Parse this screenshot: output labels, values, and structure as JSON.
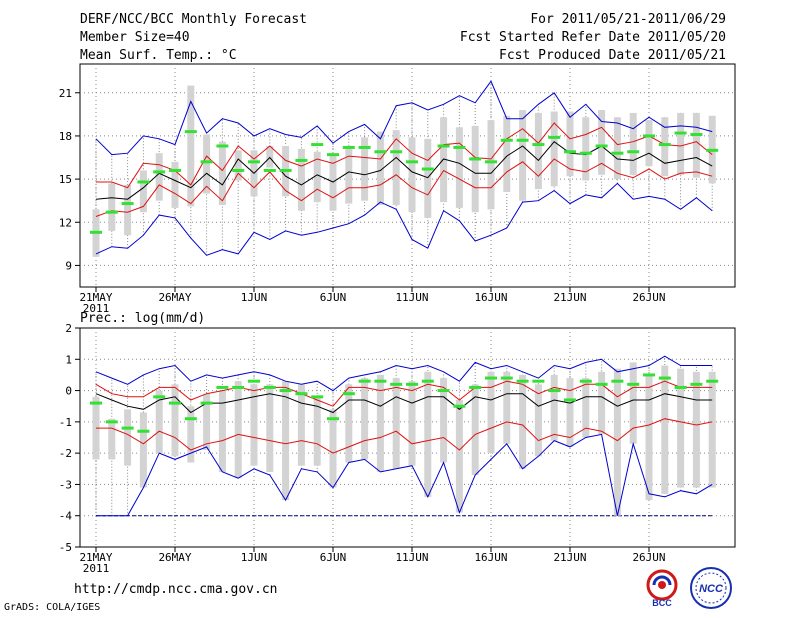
{
  "header": {
    "title": "DERF/NCC/BCC Monthly Forecast",
    "member_size": "Member Size=40",
    "variable": "Mean Surf. Temp.: °C",
    "forecast_period": "For 2011/05/21-2011/06/29",
    "start_date": "Fcst Started Refer Date 2011/05/20",
    "produced_date": "Fcst Produced Date 2011/05/21"
  },
  "footer": {
    "url": "http://cmdp.ncc.cma.gov.cn",
    "credit": "GrADS: COLA/IGES",
    "logo_left_text": "BCC",
    "logo_right_text": "NCC"
  },
  "colors": {
    "box": "#d3d3d3",
    "median": "#33e133",
    "mean": "#000000",
    "std": "#e01010",
    "range": "#0000d0",
    "whisker": "#888888"
  },
  "chart_data": [
    {
      "type": "box",
      "title": "Mean Surf. Temp.: °C",
      "ylim": [
        7.5,
        23
      ],
      "yticks": [
        9,
        12,
        15,
        18,
        21
      ],
      "xlabels": [
        "21MAY",
        "26MAY",
        "1JUN",
        "6JUN",
        "11JUN",
        "16JUN",
        "21JUN",
        "26JUN"
      ],
      "year": "2011",
      "days": 40,
      "mean": [
        13.6,
        13.7,
        13.6,
        14.4,
        15.4,
        14.9,
        14.4,
        15.4,
        14.6,
        16.4,
        15.4,
        16.5,
        15.2,
        14.6,
        15.3,
        14.8,
        15.5,
        15.3,
        15.6,
        16.5,
        15.5,
        15.1,
        16.4,
        16.1,
        15.4,
        15.4,
        16.6,
        17.3,
        16.3,
        17.6,
        16.8,
        16.7,
        17.3,
        16.4,
        16.3,
        16.8,
        16.1,
        16.3,
        16.5,
        15.9
      ],
      "std_upper": [
        14.8,
        14.8,
        14.4,
        16.1,
        16.0,
        15.6,
        14.6,
        16.6,
        15.6,
        17.3,
        16.4,
        17.3,
        16.3,
        15.9,
        16.4,
        16.1,
        16.6,
        16.5,
        16.4,
        17.8,
        16.8,
        16.3,
        17.4,
        17.5,
        16.5,
        16.4,
        17.8,
        18.5,
        17.5,
        18.9,
        17.8,
        18.1,
        18.6,
        17.4,
        17.6,
        18.0,
        17.4,
        17.3,
        17.6,
        16.7
      ],
      "std_lower": [
        12.4,
        12.8,
        12.7,
        13.1,
        14.6,
        14.0,
        13.3,
        14.5,
        13.5,
        15.4,
        14.4,
        15.5,
        14.2,
        13.5,
        14.3,
        13.7,
        14.4,
        14.4,
        14.6,
        15.3,
        14.4,
        13.9,
        15.6,
        15.0,
        14.4,
        14.4,
        15.5,
        16.2,
        15.2,
        16.4,
        15.7,
        15.5,
        16.1,
        15.4,
        15.1,
        15.7,
        15.0,
        15.4,
        15.5,
        15.2
      ],
      "max": [
        17.8,
        16.7,
        16.8,
        18.0,
        17.8,
        17.4,
        20.4,
        18.2,
        19.2,
        18.9,
        18.0,
        18.5,
        18.1,
        17.9,
        18.7,
        17.5,
        18.3,
        18.8,
        17.8,
        20.1,
        20.3,
        19.8,
        20.2,
        20.8,
        20.3,
        21.8,
        19.2,
        19.2,
        20.2,
        21.0,
        19.3,
        20.2,
        19.0,
        18.9,
        18.5,
        19.3,
        18.6,
        18.7,
        18.6,
        18.3
      ],
      "min": [
        9.8,
        10.3,
        10.2,
        11.1,
        12.5,
        12.3,
        10.9,
        9.7,
        10.1,
        9.8,
        11.3,
        10.8,
        11.4,
        11.1,
        11.3,
        11.6,
        11.9,
        12.5,
        13.4,
        12.9,
        10.8,
        10.2,
        12.8,
        12.1,
        10.7,
        11.1,
        11.6,
        13.4,
        13.5,
        14.2,
        13.3,
        13.9,
        13.7,
        14.7,
        13.6,
        13.8,
        13.6,
        12.9,
        13.7,
        12.8
      ],
      "box_top": [
        12.9,
        14.7,
        14.6,
        15.6,
        16.8,
        16.2,
        21.5,
        18.1,
        17.6,
        17.0,
        17.0,
        17.3,
        17.3,
        17.1,
        16.9,
        16.7,
        17.3,
        17.9,
        18.3,
        18.4,
        17.9,
        17.8,
        19.3,
        18.6,
        18.7,
        19.1,
        19.4,
        19.8,
        19.6,
        19.7,
        19.7,
        19.3,
        19.8,
        19.3,
        19.6,
        19.1,
        19.3,
        19.6,
        19.6,
        19.4
      ],
      "box_bottom": [
        9.6,
        11.4,
        11.1,
        12.7,
        13.5,
        13.0,
        13.1,
        14.0,
        13.2,
        14.9,
        13.8,
        15.8,
        13.8,
        12.8,
        13.4,
        12.8,
        13.3,
        13.5,
        13.2,
        13.2,
        12.7,
        12.3,
        13.4,
        13.0,
        12.7,
        12.9,
        14.1,
        13.5,
        14.3,
        14.5,
        15.2,
        14.9,
        15.3,
        15.0,
        15.3,
        15.9,
        15.2,
        15.3,
        15.1,
        14.7
      ],
      "median": [
        11.3,
        12.7,
        13.3,
        14.8,
        15.5,
        15.6,
        18.3,
        16.2,
        17.3,
        15.6,
        16.2,
        15.6,
        15.6,
        16.3,
        17.4,
        16.7,
        17.2,
        17.2,
        16.9,
        16.9,
        16.2,
        15.7,
        17.3,
        17.2,
        16.4,
        16.2,
        17.7,
        17.7,
        17.4,
        17.9,
        16.9,
        16.8,
        17.3,
        16.8,
        16.9,
        18.0,
        17.4,
        18.2,
        18.1,
        17.0
      ]
    },
    {
      "type": "box",
      "title": "Prec.: log(mm/d)",
      "ylim": [
        -5,
        2
      ],
      "yticks": [
        -5,
        -4,
        -3,
        -2,
        -1,
        0,
        1,
        2
      ],
      "xlabels": [
        "21MAY",
        "26MAY",
        "1JUN",
        "6JUN",
        "11JUN",
        "16JUN",
        "21JUN",
        "26JUN"
      ],
      "year": "2011",
      "days": 40,
      "baseline": -4,
      "mean": [
        -0.1,
        -0.3,
        -0.5,
        -0.6,
        -0.3,
        -0.2,
        -0.7,
        -0.4,
        -0.4,
        -0.3,
        -0.2,
        -0.1,
        -0.2,
        -0.4,
        -0.5,
        -0.7,
        -0.3,
        -0.3,
        -0.5,
        -0.2,
        -0.4,
        -0.2,
        -0.2,
        -0.6,
        -0.2,
        -0.3,
        -0.1,
        -0.1,
        -0.5,
        -0.3,
        -0.4,
        -0.2,
        -0.2,
        -0.5,
        -0.3,
        -0.3,
        -0.1,
        -0.2,
        -0.3,
        -0.3
      ],
      "std_upper": [
        0.2,
        -0.1,
        -0.2,
        -0.2,
        0.1,
        0.1,
        -0.3,
        -0.1,
        0.0,
        0.1,
        0.0,
        0.1,
        0.1,
        -0.1,
        -0.3,
        -0.5,
        0.1,
        0.1,
        0.0,
        0.1,
        0.0,
        0.2,
        0.1,
        -0.3,
        0.1,
        0.1,
        0.3,
        0.2,
        -0.1,
        0.1,
        0.0,
        0.2,
        0.2,
        -0.2,
        0.1,
        0.1,
        0.3,
        0.1,
        0.1,
        0.1
      ],
      "std_lower": [
        -1.2,
        -1.2,
        -1.4,
        -1.7,
        -1.3,
        -1.5,
        -1.9,
        -1.7,
        -1.6,
        -1.4,
        -1.5,
        -1.6,
        -1.7,
        -1.6,
        -1.7,
        -2.0,
        -1.8,
        -1.6,
        -1.5,
        -1.3,
        -1.7,
        -1.6,
        -1.5,
        -1.9,
        -1.4,
        -1.2,
        -1.0,
        -1.1,
        -1.6,
        -1.4,
        -1.5,
        -1.2,
        -1.3,
        -1.6,
        -1.2,
        -1.1,
        -0.9,
        -1.0,
        -1.1,
        -1.0
      ],
      "max": [
        0.6,
        0.4,
        0.2,
        0.5,
        0.7,
        0.8,
        0.3,
        0.5,
        0.4,
        0.5,
        0.6,
        0.5,
        0.3,
        0.2,
        0.3,
        0.0,
        0.4,
        0.5,
        0.6,
        0.8,
        0.7,
        0.8,
        0.6,
        0.3,
        0.9,
        0.7,
        0.8,
        0.6,
        0.4,
        0.8,
        0.7,
        0.9,
        1.0,
        0.6,
        0.7,
        0.8,
        1.1,
        0.8,
        0.8,
        0.8
      ],
      "min": [
        -4.0,
        -4.0,
        -4.0,
        -3.1,
        -2.0,
        -2.2,
        -2.0,
        -1.8,
        -2.6,
        -2.8,
        -2.5,
        -2.7,
        -3.5,
        -2.5,
        -2.6,
        -3.1,
        -2.3,
        -2.2,
        -2.6,
        -2.5,
        -2.4,
        -3.4,
        -2.3,
        -3.9,
        -2.7,
        -2.2,
        -1.7,
        -2.5,
        -2.1,
        -1.6,
        -1.8,
        -1.5,
        -1.4,
        -4.0,
        -1.7,
        -3.3,
        -3.4,
        -3.2,
        -3.3,
        -3.0
      ],
      "box_top": [
        -0.2,
        -0.9,
        -0.6,
        -0.7,
        0.0,
        0.2,
        -0.5,
        -0.1,
        0.0,
        0.3,
        0.2,
        0.2,
        0.3,
        0.2,
        -0.2,
        -0.6,
        0.2,
        0.4,
        0.5,
        0.4,
        0.3,
        0.6,
        0.4,
        -0.3,
        0.2,
        0.6,
        0.6,
        0.5,
        0.2,
        0.5,
        0.4,
        0.4,
        0.6,
        0.7,
        0.9,
        0.5,
        0.8,
        0.7,
        0.6,
        0.6
      ],
      "box_bottom": [
        -2.2,
        -2.2,
        -2.4,
        -3.1,
        -2.0,
        -2.1,
        -2.3,
        -1.9,
        -2.6,
        -2.8,
        -2.4,
        -2.6,
        -3.5,
        -2.4,
        -2.4,
        -3.1,
        -2.3,
        -2.2,
        -2.6,
        -2.5,
        -2.4,
        -3.4,
        -2.3,
        -3.9,
        -2.7,
        -2.0,
        -1.7,
        -2.5,
        -2.1,
        -1.6,
        -1.8,
        -1.5,
        -1.4,
        -4.0,
        -1.7,
        -3.5,
        -3.3,
        -3.1,
        -3.1,
        -3.1
      ],
      "median": [
        -0.4,
        -1.0,
        -1.2,
        -1.3,
        -0.2,
        -0.4,
        -0.9,
        -0.4,
        0.1,
        0.1,
        0.3,
        0.1,
        0.0,
        -0.1,
        -0.2,
        -0.9,
        -0.1,
        0.3,
        0.3,
        0.2,
        0.2,
        0.3,
        0.0,
        -0.5,
        0.1,
        0.4,
        0.4,
        0.3,
        0.3,
        0.0,
        -0.3,
        0.3,
        0.2,
        0.3,
        0.2,
        0.5,
        0.4,
        0.1,
        0.2,
        0.3
      ]
    }
  ]
}
